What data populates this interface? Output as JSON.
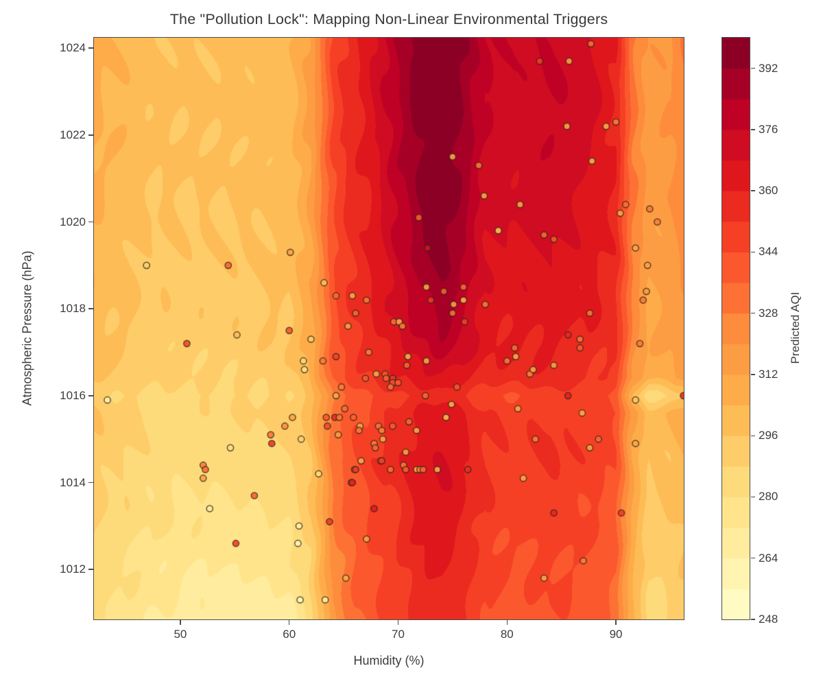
{
  "chart_data": {
    "type": "heatmap",
    "subtype": "filled-contour-with-scatter",
    "title": "The \"Pollution Lock\": Mapping Non-Linear Environmental Triggers",
    "xlabel": "Humidity (%)",
    "ylabel": "Atmospheric Pressure (hPa)",
    "colorbar_label": "Predicted AQI",
    "xlim": [
      42.07,
      96.23
    ],
    "ylim": [
      1010.85,
      1024.24
    ],
    "x_ticks": [
      50,
      60,
      70,
      80,
      90
    ],
    "y_ticks": [
      1012,
      1014,
      1016,
      1018,
      1020,
      1022,
      1024
    ],
    "colorbar_ticks": [
      248,
      264,
      280,
      296,
      312,
      328,
      344,
      360,
      376,
      392
    ],
    "vmin": 248,
    "vmax": 400,
    "level_step": 8,
    "grid_on": false,
    "colormap": {
      "name": "YlOrRd",
      "stops": [
        [
          0.0,
          "#ffffcc"
        ],
        [
          0.125,
          "#ffeda0"
        ],
        [
          0.25,
          "#fed976"
        ],
        [
          0.375,
          "#feb24c"
        ],
        [
          0.5,
          "#fd8d3c"
        ],
        [
          0.625,
          "#fc4e2a"
        ],
        [
          0.75,
          "#e31a1c"
        ],
        [
          0.875,
          "#bd0026"
        ],
        [
          1.0,
          "#800026"
        ]
      ]
    },
    "grid": {
      "humidity": [
        42,
        48,
        54,
        60,
        62,
        64,
        66,
        68,
        70,
        72,
        74,
        76,
        78,
        81,
        84,
        87,
        90,
        91.5,
        93,
        95,
        97
      ],
      "pressure": [
        1024.5,
        1023,
        1021,
        1019.5,
        1018,
        1017,
        1016.4,
        1016,
        1015.6,
        1014.5,
        1013,
        1011.5,
        1010.5
      ],
      "aqi": [
        [
          306,
          298,
          298,
          301,
          314,
          346,
          358,
          370,
          386,
          398,
          401,
          394,
          378,
          374,
          378,
          372,
          362,
          330,
          316,
          319,
          334
        ],
        [
          306,
          298,
          298,
          301,
          314,
          346,
          358,
          370,
          384,
          396,
          401,
          392,
          376,
          372,
          376,
          372,
          360,
          330,
          317,
          319,
          333
        ],
        [
          305,
          297,
          297,
          300,
          313,
          345,
          357,
          365,
          381,
          393,
          400,
          389,
          373,
          371,
          373,
          369,
          360,
          330,
          316,
          318,
          331
        ],
        [
          302,
          295,
          295,
          299,
          311,
          343,
          355,
          363,
          377,
          389,
          397,
          385,
          369,
          367,
          369,
          365,
          357,
          328,
          314,
          316,
          329
        ],
        [
          301,
          293,
          293,
          297,
          309,
          341,
          353,
          361,
          371,
          381,
          389,
          379,
          365,
          363,
          365,
          361,
          355,
          326,
          312,
          314,
          325
        ],
        [
          299,
          291,
          291,
          295,
          307,
          339,
          351,
          357,
          365,
          373,
          379,
          371,
          361,
          359,
          361,
          357,
          353,
          324,
          310,
          312,
          321
        ],
        [
          297,
          289,
          289,
          293,
          305,
          337,
          347,
          353,
          359,
          365,
          369,
          363,
          357,
          355,
          357,
          353,
          349,
          321,
          306,
          309,
          317
        ],
        [
          293,
          285,
          285,
          289,
          299,
          329,
          339,
          345,
          349,
          353,
          357,
          353,
          347,
          345,
          349,
          345,
          341,
          301,
          281,
          289,
          301
        ],
        [
          295,
          287,
          287,
          291,
          301,
          333,
          343,
          349,
          355,
          361,
          365,
          359,
          351,
          349,
          353,
          349,
          345,
          315,
          298,
          303,
          311
        ],
        [
          293,
          283,
          283,
          287,
          297,
          331,
          343,
          351,
          357,
          365,
          369,
          363,
          353,
          349,
          353,
          349,
          343,
          313,
          296,
          299,
          307
        ],
        [
          289,
          279,
          277,
          281,
          293,
          327,
          339,
          347,
          353,
          361,
          365,
          359,
          349,
          345,
          349,
          345,
          339,
          309,
          292,
          295,
          301
        ],
        [
          285,
          273,
          269,
          273,
          287,
          321,
          335,
          343,
          349,
          357,
          361,
          355,
          345,
          341,
          345,
          341,
          335,
          305,
          287,
          289,
          295
        ],
        [
          283,
          269,
          265,
          267,
          283,
          319,
          333,
          341,
          347,
          355,
          359,
          353,
          343,
          339,
          343,
          339,
          333,
          303,
          285,
          287,
          293
        ]
      ]
    },
    "points": [
      [
        46.9,
        1019.0,
        290
      ],
      [
        54.4,
        1019.0,
        336
      ],
      [
        60.1,
        1019.3,
        314
      ],
      [
        43.3,
        1015.9,
        262
      ],
      [
        50.6,
        1017.2,
        345
      ],
      [
        55.2,
        1017.4,
        300
      ],
      [
        60.0,
        1017.5,
        340
      ],
      [
        62.0,
        1017.3,
        294
      ],
      [
        61.3,
        1016.8,
        288
      ],
      [
        61.4,
        1016.6,
        282
      ],
      [
        54.6,
        1014.8,
        280
      ],
      [
        58.4,
        1014.9,
        350
      ],
      [
        58.3,
        1015.1,
        330
      ],
      [
        59.6,
        1015.3,
        322
      ],
      [
        60.3,
        1015.5,
        311
      ],
      [
        52.1,
        1014.4,
        328
      ],
      [
        52.3,
        1014.3,
        333
      ],
      [
        52.1,
        1014.1,
        312
      ],
      [
        56.8,
        1013.7,
        336
      ],
      [
        52.7,
        1013.4,
        270
      ],
      [
        55.1,
        1012.6,
        348
      ],
      [
        60.9,
        1013.0,
        266
      ],
      [
        60.8,
        1012.6,
        260
      ],
      [
        61.1,
        1015.0,
        290
      ],
      [
        62.7,
        1014.2,
        285
      ],
      [
        61.0,
        1011.3,
        258
      ],
      [
        63.3,
        1011.3,
        270
      ],
      [
        63.2,
        1018.6,
        300
      ],
      [
        64.3,
        1018.3,
        335
      ],
      [
        65.8,
        1018.3,
        315
      ],
      [
        67.1,
        1018.2,
        332
      ],
      [
        66.1,
        1017.9,
        338
      ],
      [
        65.4,
        1017.6,
        318
      ],
      [
        69.6,
        1017.7,
        335
      ],
      [
        70.1,
        1017.7,
        312
      ],
      [
        70.4,
        1017.6,
        330
      ],
      [
        72.6,
        1018.5,
        316
      ],
      [
        73.0,
        1018.2,
        352
      ],
      [
        74.2,
        1018.4,
        340
      ],
      [
        75.1,
        1018.1,
        318
      ],
      [
        75.0,
        1017.9,
        334
      ],
      [
        76.0,
        1018.5,
        336
      ],
      [
        76.0,
        1018.2,
        310
      ],
      [
        76.1,
        1017.7,
        350
      ],
      [
        78.0,
        1018.1,
        332
      ],
      [
        63.1,
        1016.8,
        330
      ],
      [
        64.3,
        1016.9,
        348
      ],
      [
        67.0,
        1016.4,
        340
      ],
      [
        67.3,
        1017.0,
        330
      ],
      [
        68.0,
        1016.5,
        315
      ],
      [
        68.8,
        1016.5,
        342
      ],
      [
        68.9,
        1016.4,
        338
      ],
      [
        69.5,
        1016.4,
        352
      ],
      [
        69.5,
        1016.3,
        344
      ],
      [
        70.0,
        1016.3,
        340
      ],
      [
        69.3,
        1016.2,
        334
      ],
      [
        70.9,
        1016.9,
        312
      ],
      [
        70.8,
        1016.7,
        338
      ],
      [
        72.6,
        1016.8,
        315
      ],
      [
        72.5,
        1016.0,
        336
      ],
      [
        74.9,
        1015.8,
        310
      ],
      [
        75.4,
        1016.2,
        342
      ],
      [
        64.8,
        1016.2,
        330
      ],
      [
        64.3,
        1016.0,
        312
      ],
      [
        65.1,
        1015.7,
        334
      ],
      [
        63.4,
        1015.5,
        340
      ],
      [
        64.2,
        1015.5,
        355
      ],
      [
        64.6,
        1015.5,
        332
      ],
      [
        63.5,
        1015.3,
        345
      ],
      [
        65.9,
        1015.5,
        338
      ],
      [
        66.5,
        1015.3,
        316
      ],
      [
        66.4,
        1015.2,
        330
      ],
      [
        64.5,
        1015.1,
        318
      ],
      [
        68.2,
        1015.3,
        334
      ],
      [
        68.5,
        1015.2,
        328
      ],
      [
        68.6,
        1015.0,
        314
      ],
      [
        69.5,
        1015.3,
        340
      ],
      [
        71.0,
        1015.4,
        336
      ],
      [
        71.7,
        1015.2,
        315
      ],
      [
        74.4,
        1015.5,
        305
      ],
      [
        67.8,
        1014.9,
        330
      ],
      [
        67.9,
        1014.8,
        336
      ],
      [
        66.6,
        1014.5,
        312
      ],
      [
        66.0,
        1014.3,
        334
      ],
      [
        66.1,
        1014.3,
        352
      ],
      [
        65.7,
        1014.0,
        340
      ],
      [
        65.8,
        1014.0,
        360
      ],
      [
        68.4,
        1014.5,
        330
      ],
      [
        68.5,
        1014.5,
        350
      ],
      [
        69.3,
        1014.3,
        335
      ],
      [
        70.7,
        1014.7,
        318
      ],
      [
        70.5,
        1014.4,
        332
      ],
      [
        70.7,
        1014.3,
        340
      ],
      [
        71.7,
        1014.3,
        310
      ],
      [
        72.0,
        1014.3,
        330
      ],
      [
        72.3,
        1014.3,
        336
      ],
      [
        73.6,
        1014.3,
        312
      ],
      [
        76.4,
        1014.3,
        355
      ],
      [
        67.8,
        1013.4,
        362
      ],
      [
        63.7,
        1013.1,
        350
      ],
      [
        67.1,
        1012.7,
        315
      ],
      [
        65.2,
        1011.8,
        310
      ],
      [
        80.7,
        1017.1,
        336
      ],
      [
        80.8,
        1016.9,
        312
      ],
      [
        80.0,
        1016.8,
        332
      ],
      [
        82.1,
        1016.5,
        328
      ],
      [
        82.4,
        1016.6,
        315
      ],
      [
        84.3,
        1016.7,
        318
      ],
      [
        85.6,
        1017.4,
        358
      ],
      [
        86.7,
        1017.3,
        332
      ],
      [
        86.7,
        1017.1,
        340
      ],
      [
        85.6,
        1016.0,
        360
      ],
      [
        91.8,
        1015.9,
        295
      ],
      [
        96.2,
        1016.0,
        355
      ],
      [
        81.0,
        1015.7,
        315
      ],
      [
        86.9,
        1015.6,
        312
      ],
      [
        82.6,
        1015.0,
        330
      ],
      [
        88.4,
        1015.0,
        336
      ],
      [
        87.6,
        1014.8,
        315
      ],
      [
        91.8,
        1014.9,
        310
      ],
      [
        81.5,
        1014.1,
        312
      ],
      [
        84.3,
        1013.3,
        358
      ],
      [
        90.5,
        1013.3,
        350
      ],
      [
        87.0,
        1012.2,
        330
      ],
      [
        83.4,
        1011.8,
        315
      ],
      [
        92.2,
        1017.2,
        330
      ],
      [
        71.9,
        1020.1,
        340
      ],
      [
        72.7,
        1019.4,
        370
      ],
      [
        75.0,
        1021.5,
        315
      ],
      [
        77.4,
        1021.3,
        332
      ],
      [
        85.7,
        1023.7,
        318
      ],
      [
        85.5,
        1022.2,
        315
      ],
      [
        89.1,
        1022.2,
        312
      ],
      [
        90.0,
        1022.3,
        330
      ],
      [
        87.7,
        1024.1,
        335
      ],
      [
        90.9,
        1020.4,
        334
      ],
      [
        90.4,
        1020.2,
        315
      ],
      [
        93.1,
        1020.3,
        330
      ],
      [
        91.8,
        1019.4,
        312
      ],
      [
        92.8,
        1018.4,
        318
      ],
      [
        92.5,
        1018.2,
        330
      ],
      [
        83.4,
        1019.7,
        336
      ],
      [
        84.3,
        1019.6,
        342
      ],
      [
        81.2,
        1020.4,
        315
      ],
      [
        79.2,
        1019.8,
        302
      ],
      [
        77.9,
        1020.6,
        315
      ],
      [
        87.8,
        1021.4,
        312
      ],
      [
        93.8,
        1020.0,
        328
      ],
      [
        83.0,
        1023.7,
        350
      ],
      [
        87.6,
        1017.9,
        332
      ],
      [
        92.9,
        1019.0,
        315
      ]
    ]
  }
}
